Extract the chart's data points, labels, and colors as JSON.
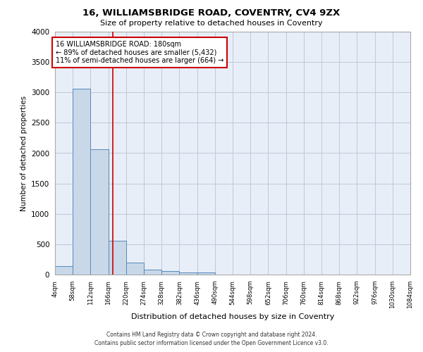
{
  "title": "16, WILLIAMSBRIDGE ROAD, COVENTRY, CV4 9ZX",
  "subtitle": "Size of property relative to detached houses in Coventry",
  "xlabel": "Distribution of detached houses by size in Coventry",
  "ylabel": "Number of detached properties",
  "footer_line1": "Contains HM Land Registry data © Crown copyright and database right 2024.",
  "footer_line2": "Contains public sector information licensed under the Open Government Licence v3.0.",
  "bin_edges": [
    4,
    58,
    112,
    166,
    220,
    274,
    328,
    382,
    436,
    490,
    544,
    598,
    652,
    706,
    760,
    814,
    868,
    922,
    976,
    1030,
    1084
  ],
  "bar_heights": [
    140,
    3060,
    2060,
    560,
    200,
    80,
    55,
    35,
    30,
    0,
    0,
    0,
    0,
    0,
    0,
    0,
    0,
    0,
    0,
    0
  ],
  "bar_color": "#c8d8e8",
  "bar_edgecolor": "#5588bb",
  "property_size": 180,
  "annotation_text": "16 WILLIAMSBRIDGE ROAD: 180sqm\n← 89% of detached houses are smaller (5,432)\n11% of semi-detached houses are larger (664) →",
  "annotation_box_color": "#ffffff",
  "annotation_box_edgecolor": "#cc0000",
  "vline_color": "#cc0000",
  "ylim": [
    0,
    4000
  ],
  "xlim": [
    4,
    1084
  ],
  "grid_color": "#c0c8d8",
  "bg_color": "#e8eef8",
  "tick_labels": [
    "4sqm",
    "58sqm",
    "112sqm",
    "166sqm",
    "220sqm",
    "274sqm",
    "328sqm",
    "382sqm",
    "436sqm",
    "490sqm",
    "544sqm",
    "598sqm",
    "652sqm",
    "706sqm",
    "760sqm",
    "814sqm",
    "868sqm",
    "922sqm",
    "976sqm",
    "1030sqm",
    "1084sqm"
  ]
}
